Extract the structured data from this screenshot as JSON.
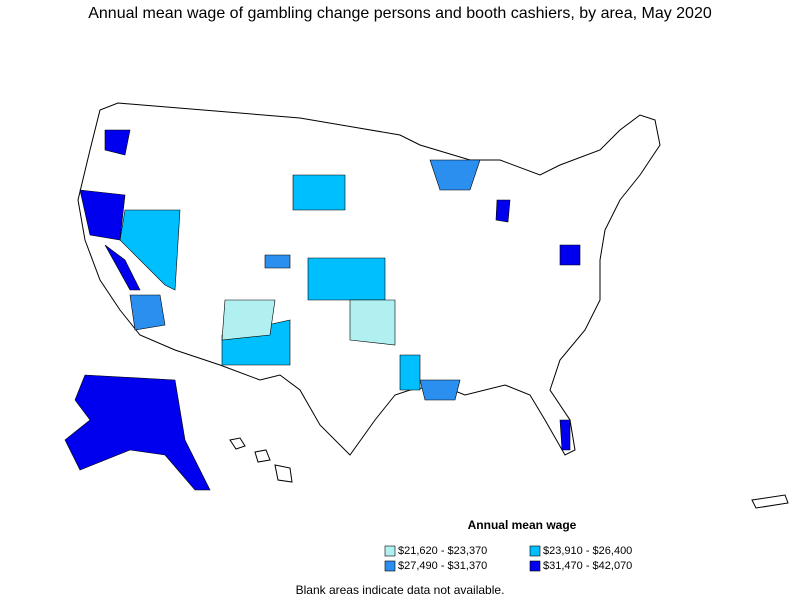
{
  "title": "Annual mean wage of gambling change persons and booth cashiers, by area, May 2020",
  "legend": {
    "title": "Annual mean wage",
    "items": [
      {
        "label": "$21,620 - $23,370",
        "color": "#b0f0f0"
      },
      {
        "label": "$23,910 - $26,400",
        "color": "#00bfff"
      },
      {
        "label": "$27,490 - $31,370",
        "color": "#2b8ff0"
      },
      {
        "label": "$31,470 - $42,070",
        "color": "#0000ee"
      }
    ]
  },
  "footnote": "Blank areas indicate data not available."
}
